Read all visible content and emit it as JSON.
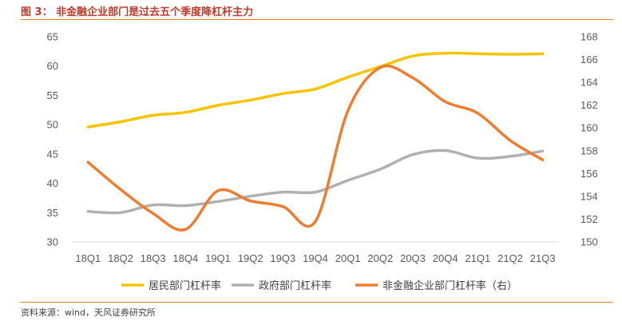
{
  "header": {
    "title": "图 3：  非金融企业部门是过去五个季度降杠杆主力"
  },
  "footer": {
    "source": "资料来源：wind，天风证券研究所"
  },
  "chart_data": {
    "type": "line",
    "title": "非金融企业部门是过去五个季度降杠杆主力",
    "categories": [
      "18Q1",
      "18Q2",
      "18Q3",
      "18Q4",
      "19Q1",
      "19Q2",
      "19Q3",
      "19Q4",
      "20Q1",
      "20Q2",
      "20Q3",
      "20Q4",
      "21Q1",
      "21Q2",
      "21Q3"
    ],
    "y_left": {
      "min": 30,
      "max": 65,
      "ticks": [
        30,
        35,
        40,
        45,
        50,
        55,
        60,
        65
      ]
    },
    "y_right": {
      "min": 150,
      "max": 168,
      "ticks": [
        150,
        152,
        154,
        156,
        158,
        160,
        162,
        164,
        166,
        168
      ]
    },
    "series": [
      {
        "name": "居民部门杠杆率",
        "axis": "left",
        "color": "#f5c400",
        "values": [
          49.6,
          50.5,
          51.6,
          52.1,
          53.3,
          54.2,
          55.3,
          56.1,
          58.1,
          59.9,
          61.7,
          62.2,
          62.1,
          62.0,
          62.1
        ]
      },
      {
        "name": "政府部门杠杆率",
        "axis": "left",
        "color": "#b0b0b0",
        "values": [
          35.2,
          35.0,
          36.3,
          36.2,
          36.9,
          37.8,
          38.5,
          38.5,
          40.5,
          42.4,
          44.9,
          45.6,
          44.3,
          44.6,
          45.5
        ]
      },
      {
        "name": "非金融企业部门杠杆率（右）",
        "axis": "right",
        "color": "#ed7d31",
        "values": [
          157.0,
          154.6,
          152.5,
          151.1,
          154.5,
          153.6,
          153.1,
          151.8,
          161.5,
          165.3,
          164.4,
          162.3,
          161.3,
          158.9,
          157.2
        ]
      }
    ],
    "legend_position": "bottom"
  }
}
